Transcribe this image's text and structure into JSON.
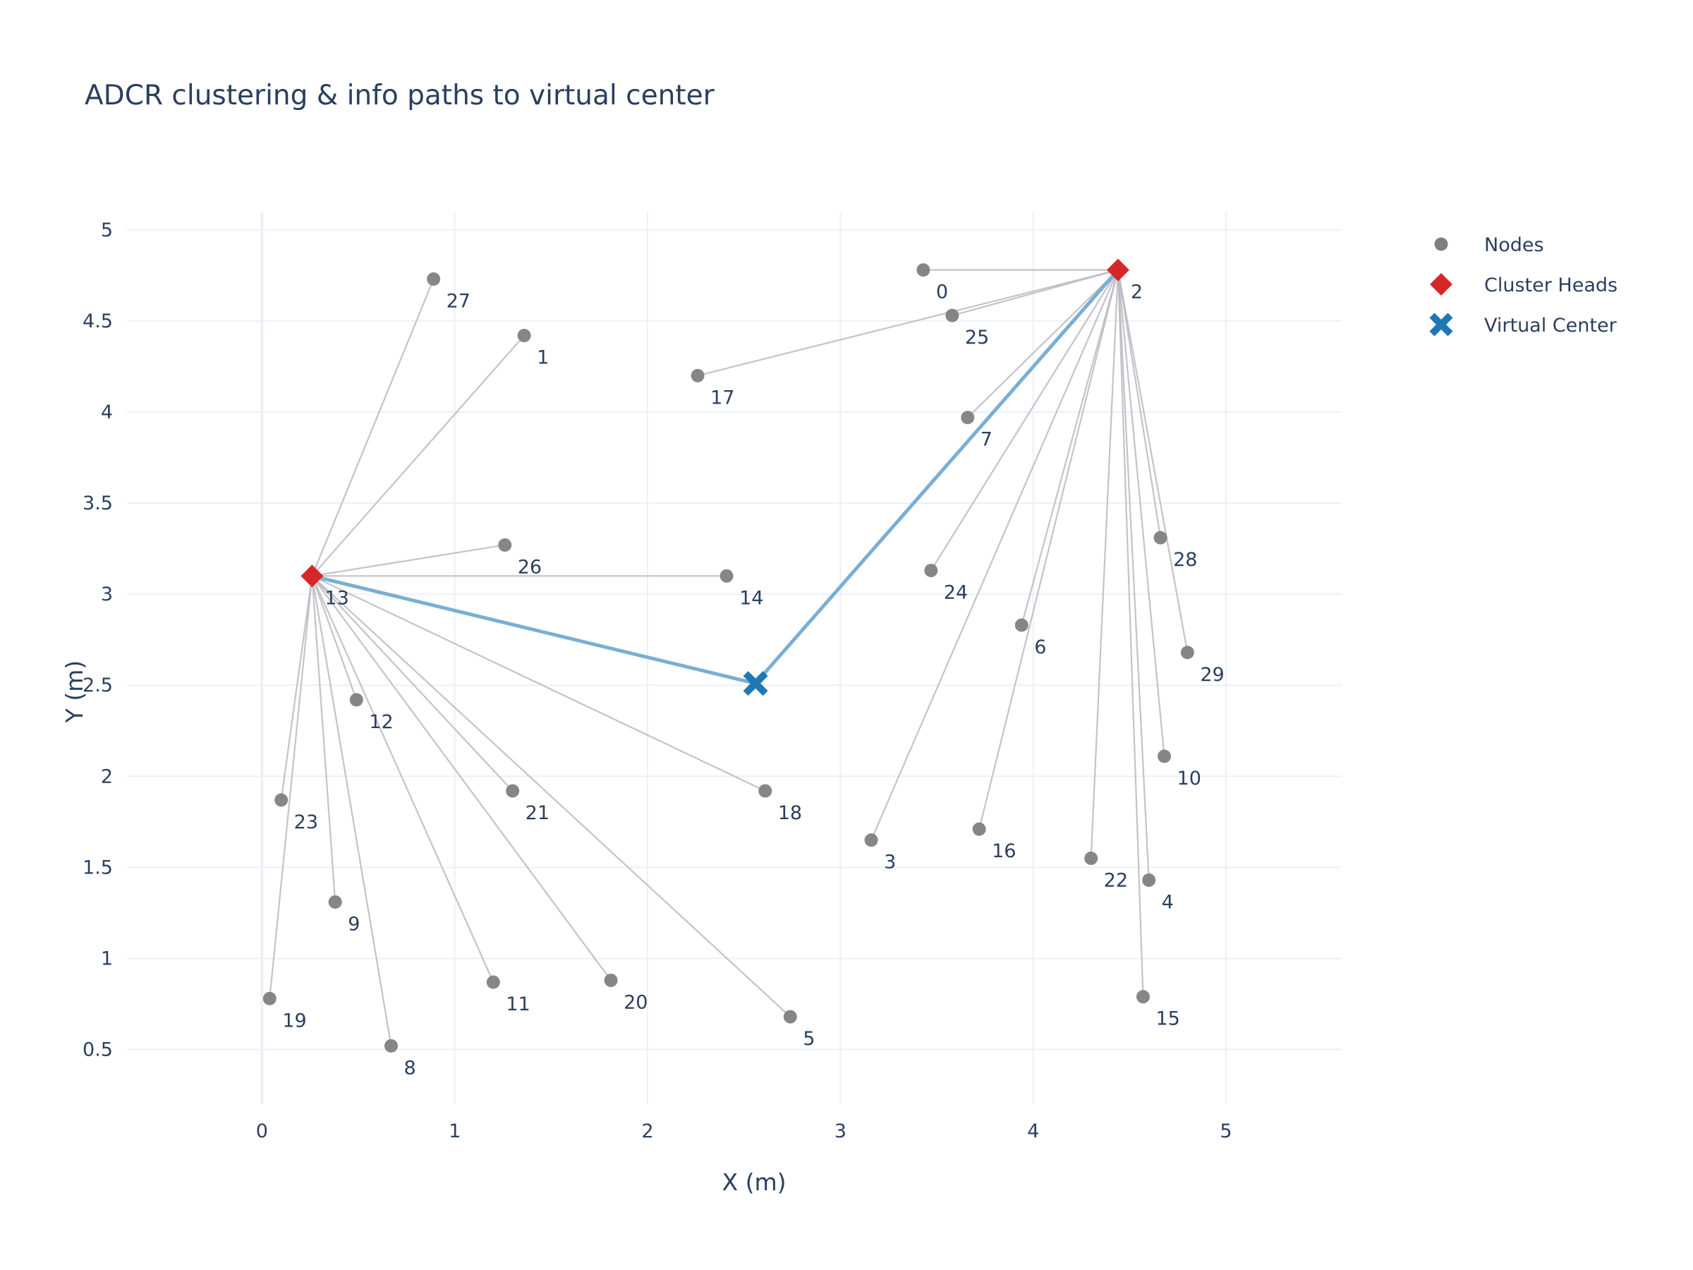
{
  "chart_data": {
    "type": "scatter",
    "title": "ADCR clustering & info paths to virtual center",
    "xlabel": "X (m)",
    "ylabel": "Y (m)",
    "xlim": [
      -0.7,
      5.6
    ],
    "ylim": [
      0.2,
      5.1
    ],
    "x_ticks": [
      0,
      1,
      2,
      3,
      4,
      5
    ],
    "x_tick_labels": [
      "0",
      "1",
      "2",
      "3",
      "4",
      "5"
    ],
    "y_ticks": [
      0.5,
      1,
      1.5,
      2,
      2.5,
      3,
      3.5,
      4,
      4.5,
      5
    ],
    "y_tick_labels": [
      "0.5",
      "1",
      "1.5",
      "2",
      "2.5",
      "3",
      "3.5",
      "4",
      "4.5",
      "5"
    ],
    "grid": true,
    "legend_position": "top-right",
    "legend": [
      {
        "name": "Nodes",
        "marker": "circle",
        "color": "#7f7f7f"
      },
      {
        "name": "Cluster Heads",
        "marker": "diamond",
        "color": "#d62728"
      },
      {
        "name": "Virtual Center",
        "marker": "x",
        "color": "#1f77b4"
      }
    ],
    "nodes": [
      {
        "id": "0",
        "x": 3.43,
        "y": 4.78,
        "head": "2"
      },
      {
        "id": "1",
        "x": 1.36,
        "y": 4.42,
        "head": "13"
      },
      {
        "id": "2",
        "x": 4.44,
        "y": 4.78,
        "head": null
      },
      {
        "id": "3",
        "x": 3.16,
        "y": 1.65,
        "head": "2"
      },
      {
        "id": "4",
        "x": 4.6,
        "y": 1.43,
        "head": "2"
      },
      {
        "id": "5",
        "x": 2.74,
        "y": 0.68,
        "head": "13"
      },
      {
        "id": "6",
        "x": 3.94,
        "y": 2.83,
        "head": "2"
      },
      {
        "id": "7",
        "x": 3.66,
        "y": 3.97,
        "head": "2"
      },
      {
        "id": "8",
        "x": 0.67,
        "y": 0.52,
        "head": "13"
      },
      {
        "id": "9",
        "x": 0.38,
        "y": 1.31,
        "head": "13"
      },
      {
        "id": "10",
        "x": 4.68,
        "y": 2.11,
        "head": "2"
      },
      {
        "id": "11",
        "x": 1.2,
        "y": 0.87,
        "head": "13"
      },
      {
        "id": "12",
        "x": 0.49,
        "y": 2.42,
        "head": "13"
      },
      {
        "id": "13",
        "x": 0.26,
        "y": 3.1,
        "head": null
      },
      {
        "id": "14",
        "x": 2.41,
        "y": 3.1,
        "head": "13"
      },
      {
        "id": "15",
        "x": 4.57,
        "y": 0.79,
        "head": "2"
      },
      {
        "id": "16",
        "x": 3.72,
        "y": 1.71,
        "head": "2"
      },
      {
        "id": "17",
        "x": 2.26,
        "y": 4.2,
        "head": "2"
      },
      {
        "id": "18",
        "x": 2.61,
        "y": 1.92,
        "head": "13"
      },
      {
        "id": "19",
        "x": 0.04,
        "y": 0.78,
        "head": "13"
      },
      {
        "id": "20",
        "x": 1.81,
        "y": 0.88,
        "head": "13"
      },
      {
        "id": "21",
        "x": 1.3,
        "y": 1.92,
        "head": "13"
      },
      {
        "id": "22",
        "x": 4.3,
        "y": 1.55,
        "head": "2"
      },
      {
        "id": "23",
        "x": 0.1,
        "y": 1.87,
        "head": "13"
      },
      {
        "id": "24",
        "x": 3.47,
        "y": 3.13,
        "head": "2"
      },
      {
        "id": "25",
        "x": 3.58,
        "y": 4.53,
        "head": "2"
      },
      {
        "id": "26",
        "x": 1.26,
        "y": 3.27,
        "head": "13"
      },
      {
        "id": "27",
        "x": 0.89,
        "y": 4.73,
        "head": "13"
      },
      {
        "id": "28",
        "x": 4.66,
        "y": 3.31,
        "head": "2"
      },
      {
        "id": "29",
        "x": 4.8,
        "y": 2.68,
        "head": "2"
      }
    ],
    "cluster_heads": [
      "2",
      "13"
    ],
    "virtual_center": {
      "x": 2.56,
      "y": 2.51
    },
    "colors": {
      "node": "#7f7f7f",
      "cluster_head": "#d62728",
      "virtual_center": "#1f77b4",
      "member_line": "#b8b8c0",
      "center_path": "#7aaed3"
    }
  }
}
